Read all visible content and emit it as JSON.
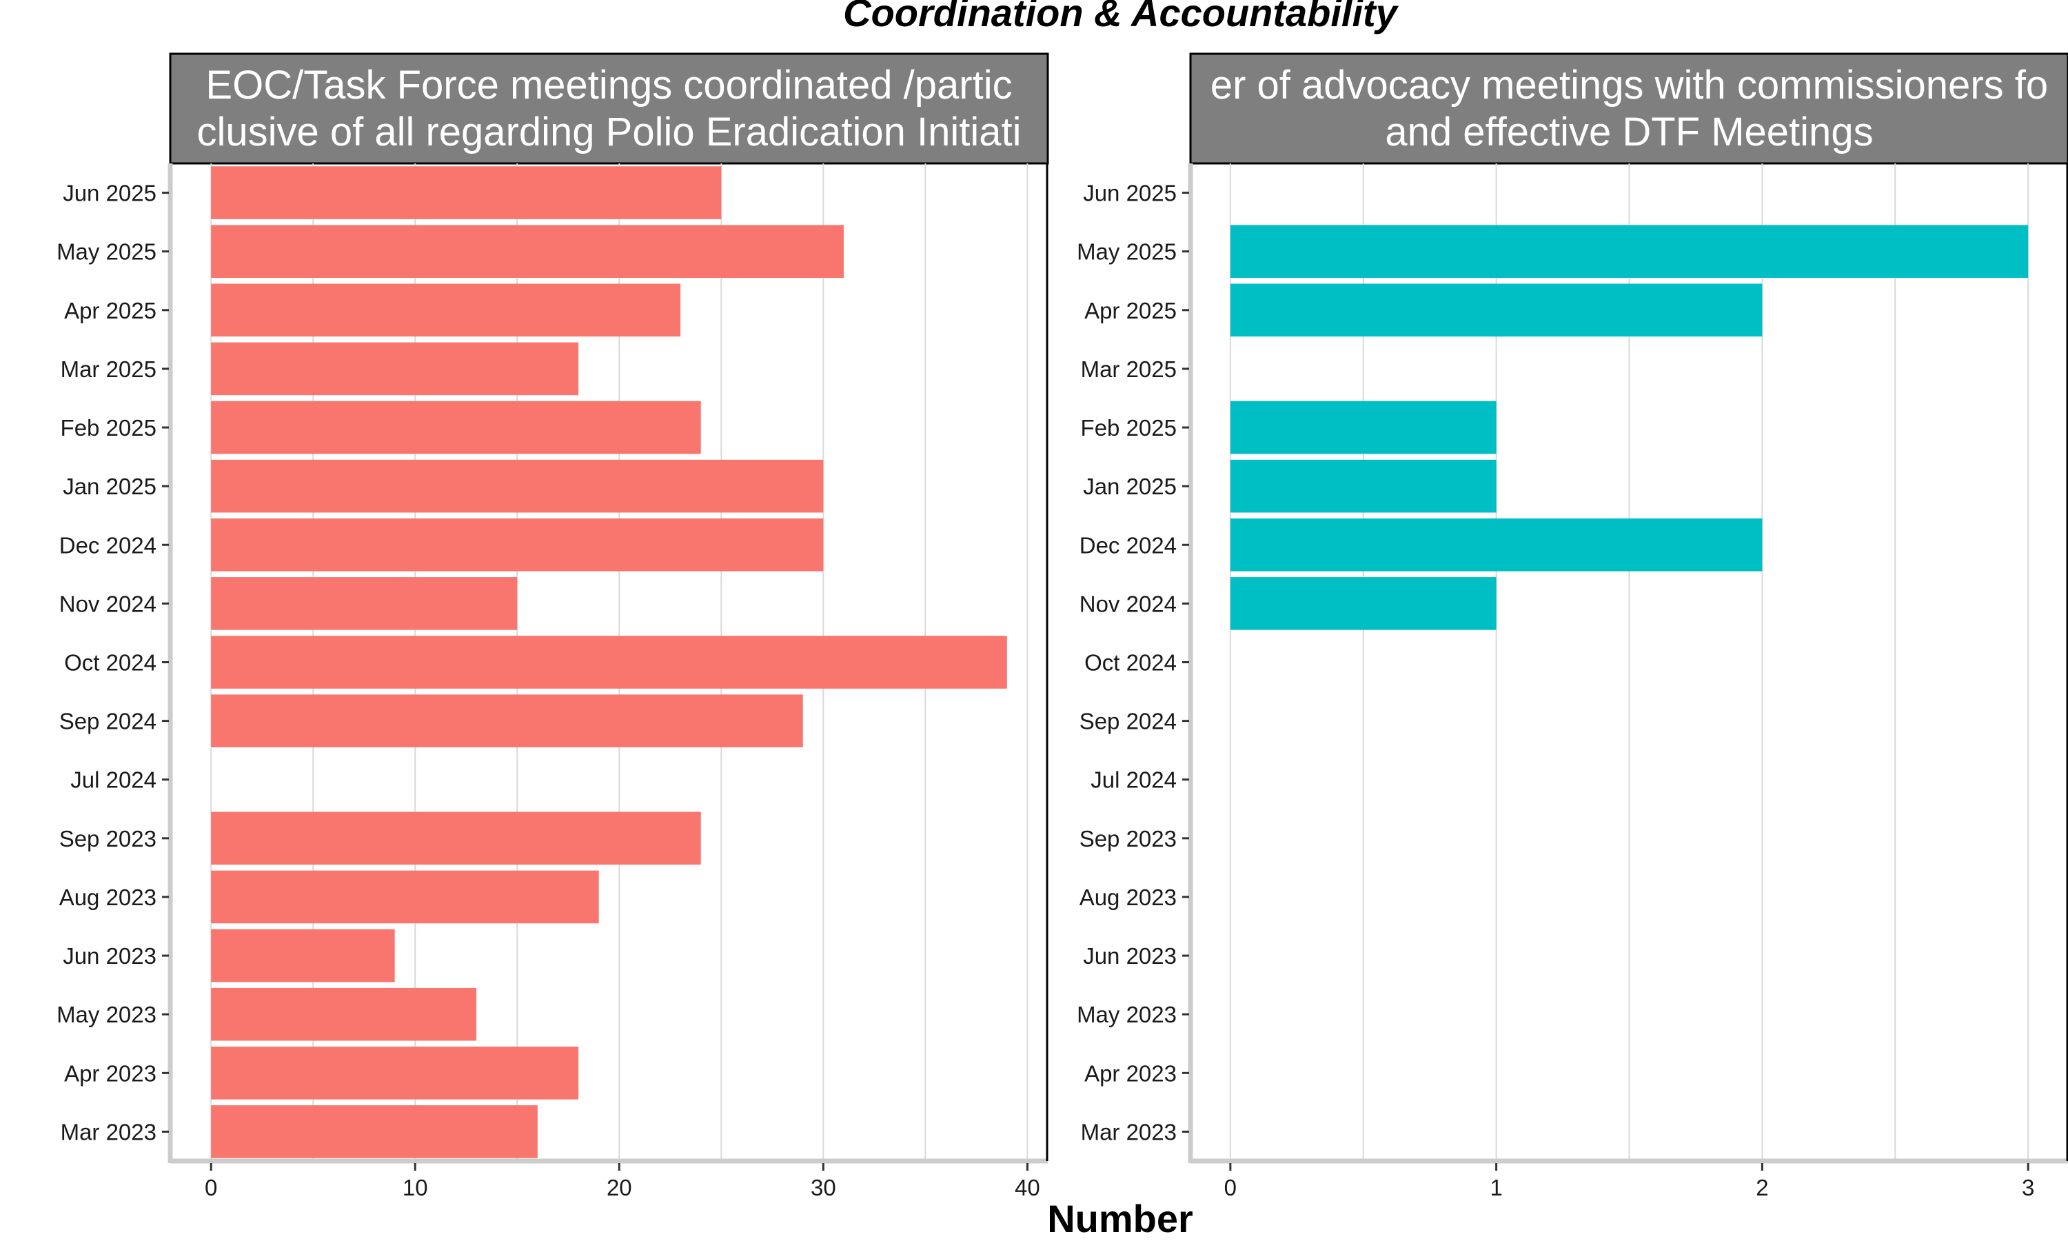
{
  "figure": {
    "title": "Coordination & Accountability",
    "xlabel": "Number"
  },
  "chart_data": [
    {
      "type": "bar",
      "orientation": "horizontal",
      "title_lines": [
        "EOC/Task Force meetings coordinated /partic",
        "clusive of all regarding Polio Eradication Initiati"
      ],
      "color": "#f8766d",
      "categories": [
        "Mar 2023",
        "Apr 2023",
        "May 2023",
        "Jun 2023",
        "Aug 2023",
        "Sep 2023",
        "Jul 2024",
        "Sep 2024",
        "Oct 2024",
        "Nov 2024",
        "Dec 2024",
        "Jan 2025",
        "Feb 2025",
        "Mar 2025",
        "Apr 2025",
        "May 2025",
        "Jun 2025"
      ],
      "values": [
        16,
        18,
        13,
        9,
        19,
        24,
        null,
        29,
        39,
        15,
        30,
        30,
        24,
        18,
        23,
        31,
        25
      ],
      "xlim": [
        -2,
        41
      ],
      "xticks": [
        0,
        10,
        20,
        30,
        40
      ],
      "grid": true
    },
    {
      "type": "bar",
      "orientation": "horizontal",
      "title_lines": [
        "er of advocacy meetings with commissioners fo",
        "and effective DTF Meetings"
      ],
      "color": "#00bfc4",
      "categories": [
        "Mar 2023",
        "Apr 2023",
        "May 2023",
        "Jun 2023",
        "Aug 2023",
        "Sep 2023",
        "Jul 2024",
        "Sep 2024",
        "Oct 2024",
        "Nov 2024",
        "Dec 2024",
        "Jan 2025",
        "Feb 2025",
        "Mar 2025",
        "Apr 2025",
        "May 2025",
        "Jun 2025"
      ],
      "values": [
        null,
        null,
        null,
        null,
        null,
        null,
        null,
        null,
        null,
        1,
        2,
        1,
        1,
        null,
        2,
        3,
        null
      ],
      "xlim": [
        -0.15,
        3.15
      ],
      "xticks": [
        0,
        1,
        2,
        3
      ],
      "grid": true
    }
  ]
}
